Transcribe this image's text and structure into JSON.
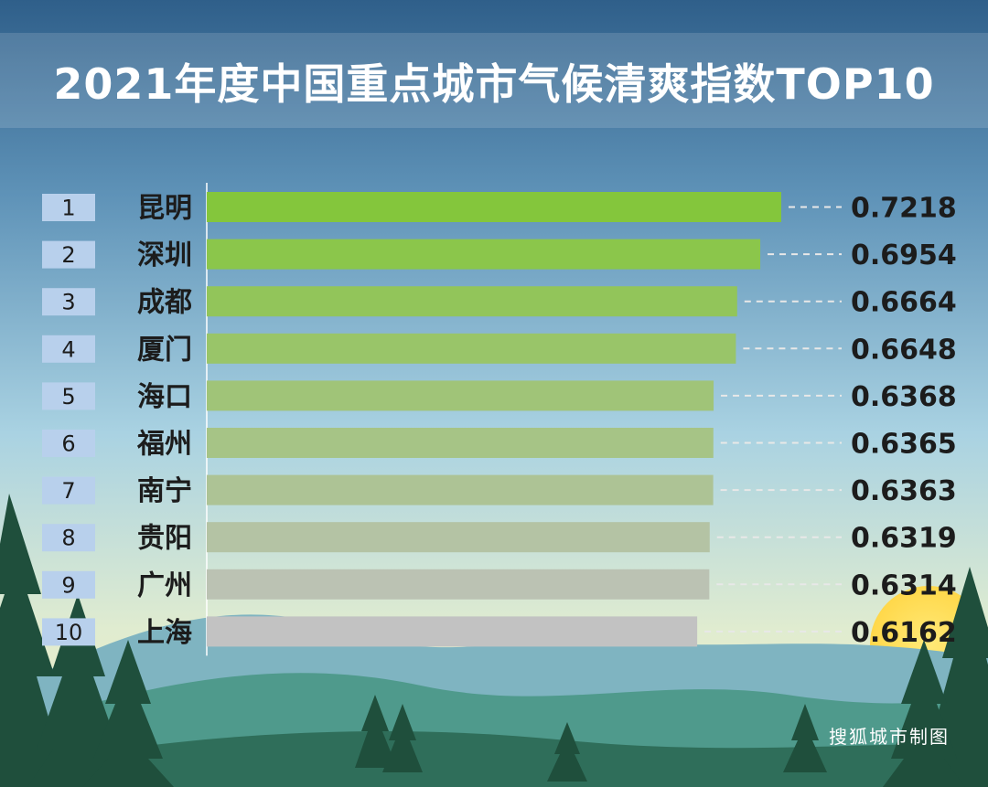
{
  "title": "2021年度中国重点城市气候清爽指数TOP10",
  "credit": "搜狐城市制图",
  "colors": {
    "bar_top": "#84c63c",
    "bar_bottom": "#c2c2c2",
    "rank_box": "#b8d0ec",
    "text_dark": "#1c1c1c",
    "leader": "#e8e8e8"
  },
  "chart_data": {
    "type": "bar",
    "orientation": "horizontal",
    "title": "2021年度中国重点城市气候清爽指数TOP10",
    "ranks": [
      "1",
      "2",
      "3",
      "4",
      "5",
      "6",
      "7",
      "8",
      "9",
      "10"
    ],
    "categories": [
      "昆明",
      "深圳",
      "成都",
      "厦门",
      "海口",
      "福州",
      "南宁",
      "贵阳",
      "广州",
      "上海"
    ],
    "values": [
      0.7218,
      0.6954,
      0.6664,
      0.6648,
      0.6368,
      0.6365,
      0.6363,
      0.6319,
      0.6314,
      0.6162
    ],
    "value_labels": [
      "0.7218",
      "0.6954",
      "0.6664",
      "0.6648",
      "0.6368",
      "0.6365",
      "0.6363",
      "0.6319",
      "0.6314",
      "0.6162"
    ],
    "xlim": [
      0,
      0.7218
    ],
    "grid": false,
    "legend": "none"
  }
}
